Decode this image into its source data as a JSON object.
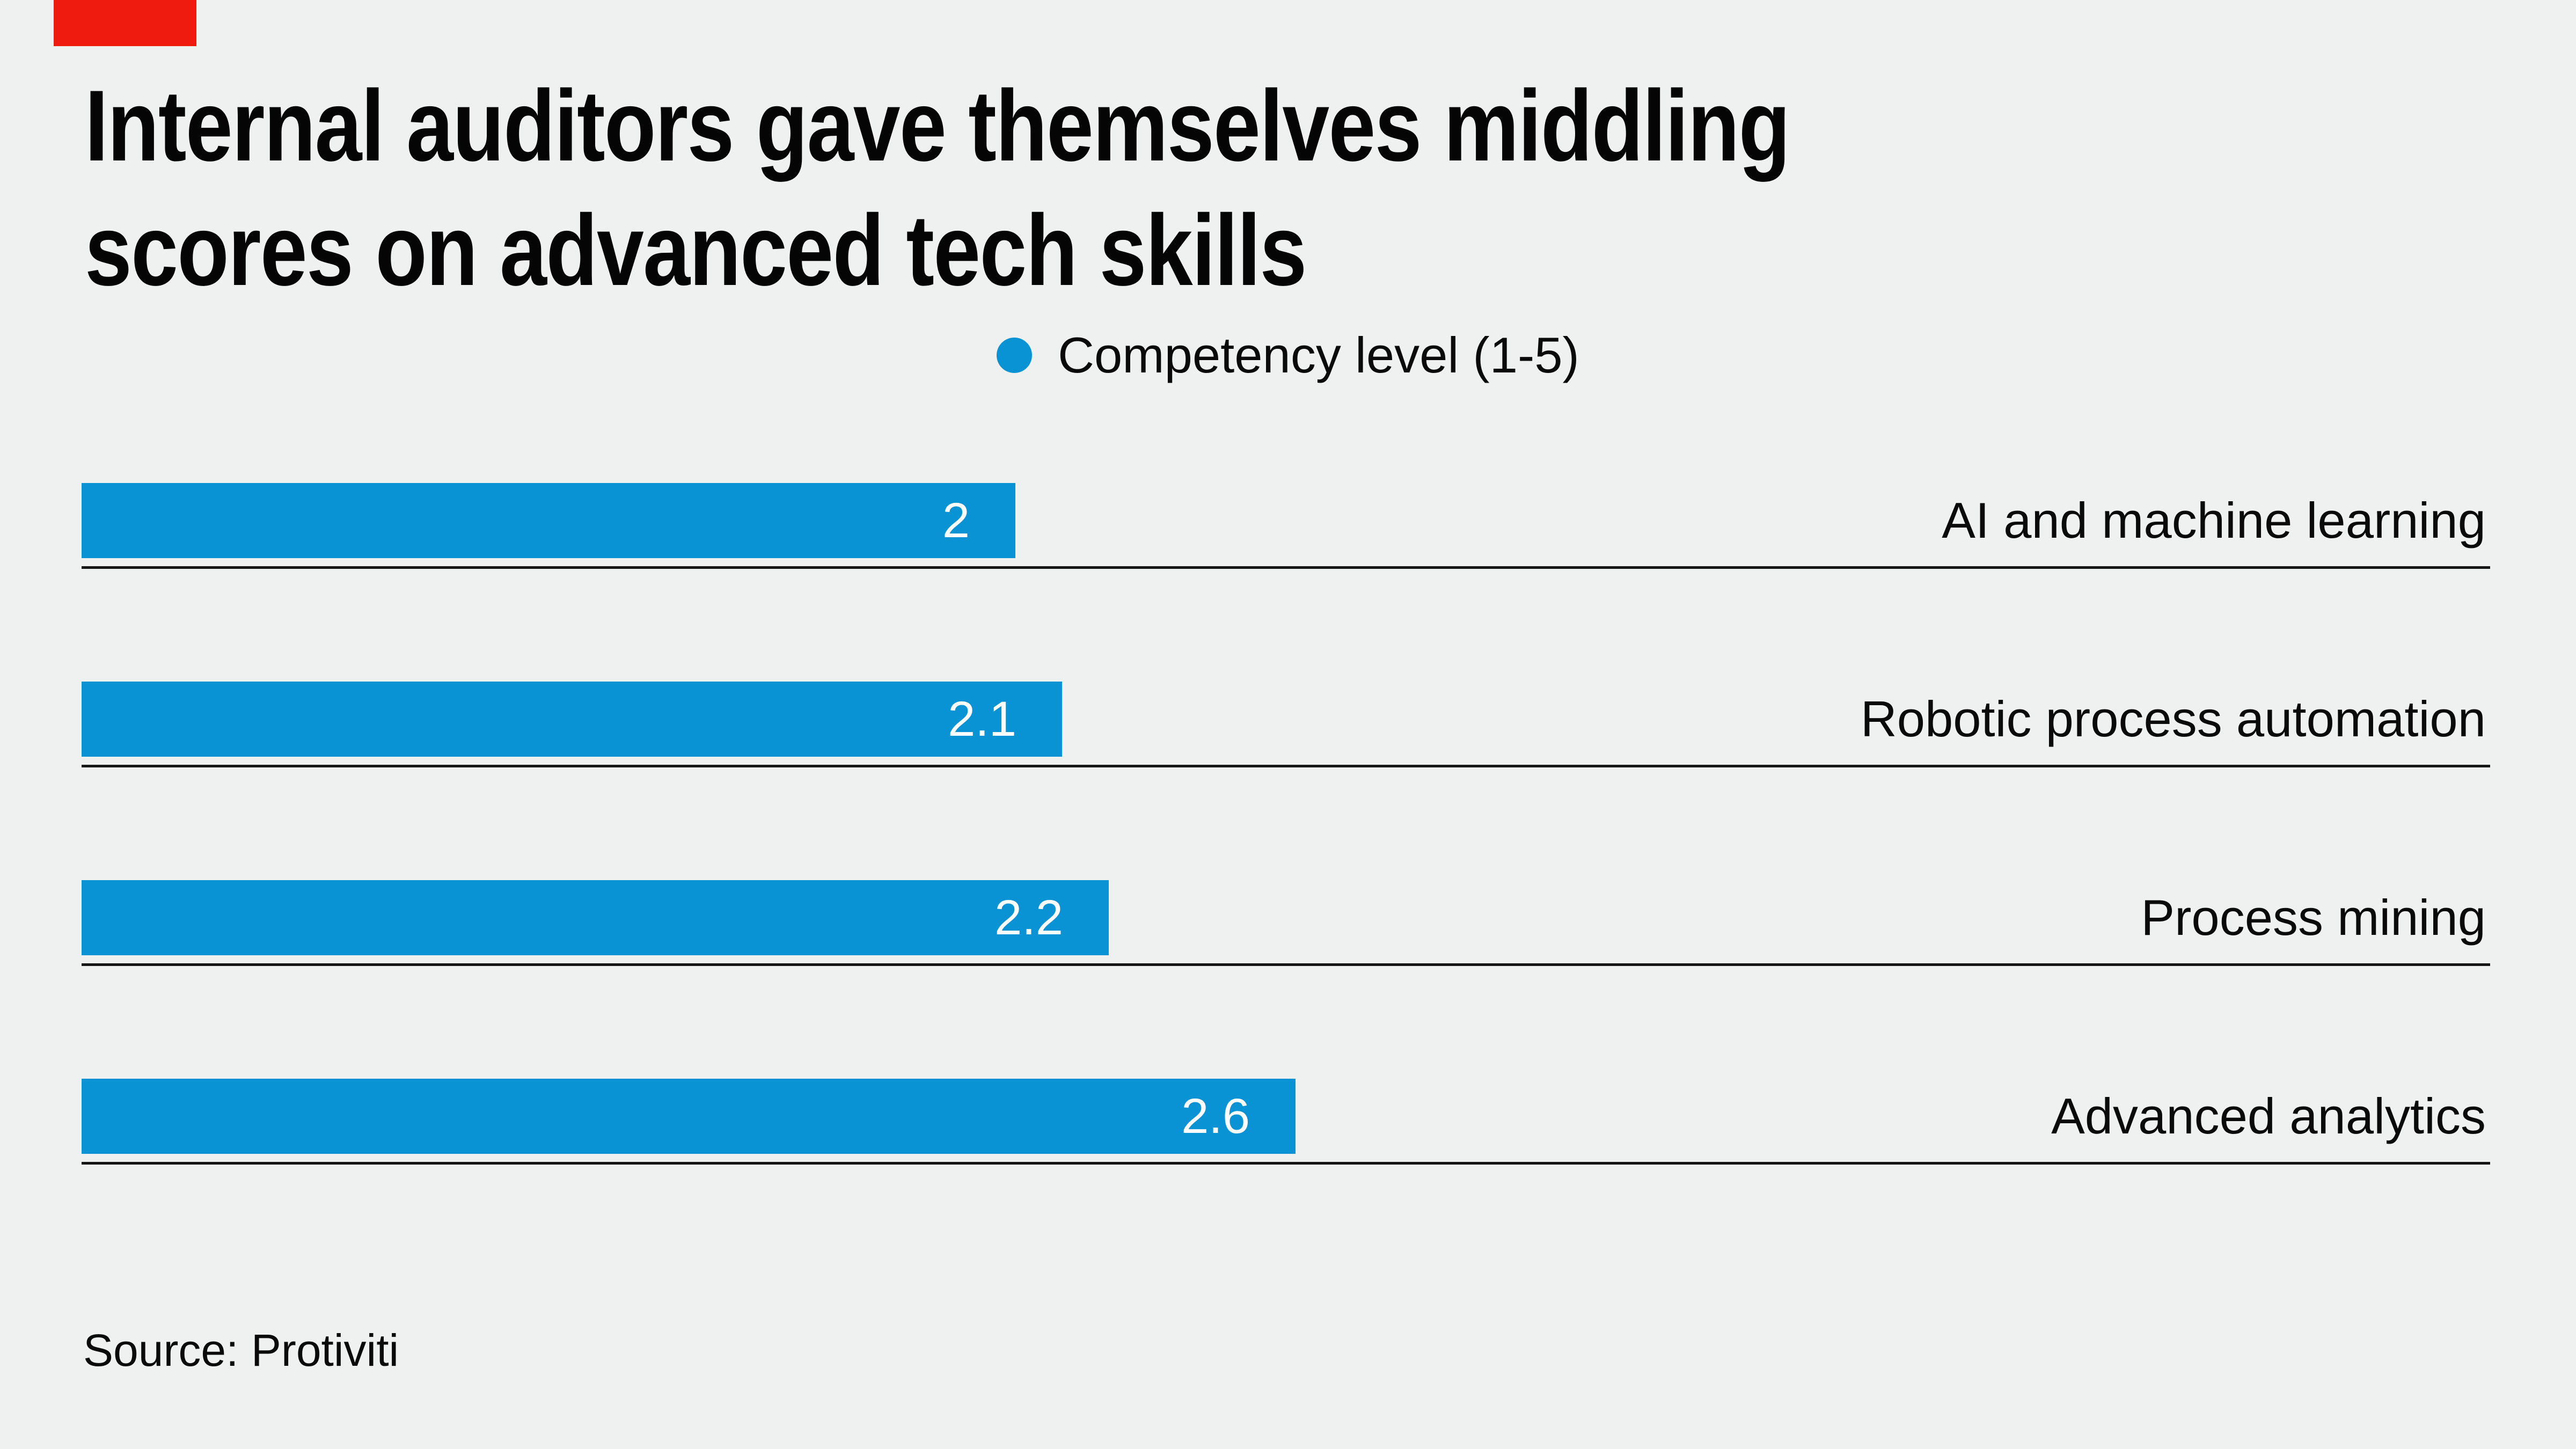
{
  "header": {
    "title_lines": [
      "Internal auditors gave themselves middling",
      "scores on advanced tech skills"
    ]
  },
  "legend": {
    "label": "Competency level (1-5)"
  },
  "source": "Source: Protiviti",
  "colors": {
    "background": "#eff1f0",
    "bar": "#0a93d4",
    "accent_mark": "#ee1b0e",
    "baseline": "#161616",
    "value_text": "#ffffff",
    "text": "#0a0a0a"
  },
  "chart_data": {
    "type": "bar",
    "orientation": "horizontal",
    "title": "Internal auditors gave themselves middling scores on advanced tech skills",
    "legend": [
      "Competency level (1-5)"
    ],
    "legend_position": "top-center",
    "categories": [
      "AI and machine learning",
      "Robotic process automation",
      "Process mining",
      "Advanced analytics"
    ],
    "values": [
      2,
      2.1,
      2.2,
      2.6
    ],
    "value_labels": [
      "2",
      "2.1",
      "2.2",
      "2.6"
    ],
    "series_name": "Competency level (1-5)",
    "scale_range": [
      1,
      5
    ],
    "grid": false,
    "bar_color": "#0a93d4",
    "source": "Source: Protiviti"
  }
}
